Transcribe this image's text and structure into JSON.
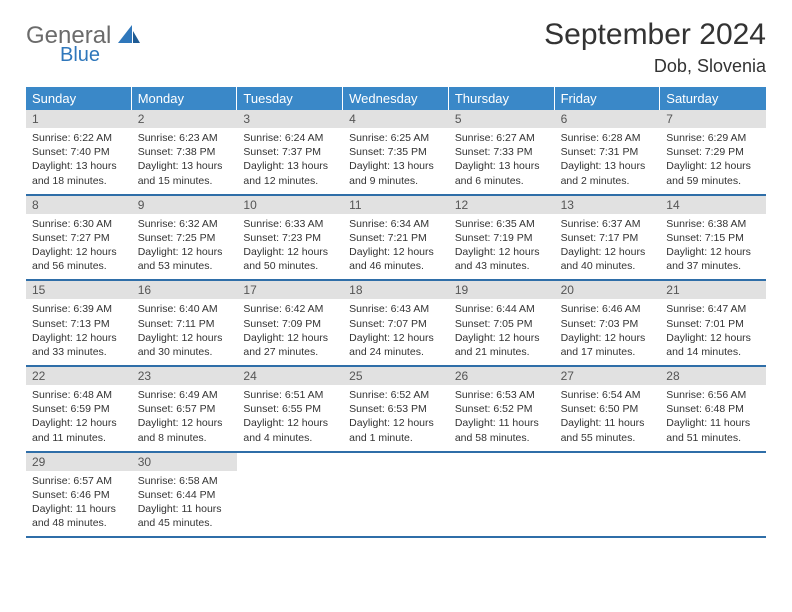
{
  "logo": {
    "general": "General",
    "blue": "Blue"
  },
  "title": "September 2024",
  "location": "Dob, Slovenia",
  "colors": {
    "header_bg": "#3a88c8",
    "header_text": "#ffffff",
    "daynum_bg": "#e1e1e1",
    "week_border": "#2f6ea8",
    "logo_gray": "#6b6b6b",
    "logo_blue": "#2f77bb"
  },
  "weekdays": [
    "Sunday",
    "Monday",
    "Tuesday",
    "Wednesday",
    "Thursday",
    "Friday",
    "Saturday"
  ],
  "weeks": [
    [
      {
        "n": "1",
        "sr": "Sunrise: 6:22 AM",
        "ss": "Sunset: 7:40 PM",
        "dl": "Daylight: 13 hours and 18 minutes."
      },
      {
        "n": "2",
        "sr": "Sunrise: 6:23 AM",
        "ss": "Sunset: 7:38 PM",
        "dl": "Daylight: 13 hours and 15 minutes."
      },
      {
        "n": "3",
        "sr": "Sunrise: 6:24 AM",
        "ss": "Sunset: 7:37 PM",
        "dl": "Daylight: 13 hours and 12 minutes."
      },
      {
        "n": "4",
        "sr": "Sunrise: 6:25 AM",
        "ss": "Sunset: 7:35 PM",
        "dl": "Daylight: 13 hours and 9 minutes."
      },
      {
        "n": "5",
        "sr": "Sunrise: 6:27 AM",
        "ss": "Sunset: 7:33 PM",
        "dl": "Daylight: 13 hours and 6 minutes."
      },
      {
        "n": "6",
        "sr": "Sunrise: 6:28 AM",
        "ss": "Sunset: 7:31 PM",
        "dl": "Daylight: 13 hours and 2 minutes."
      },
      {
        "n": "7",
        "sr": "Sunrise: 6:29 AM",
        "ss": "Sunset: 7:29 PM",
        "dl": "Daylight: 12 hours and 59 minutes."
      }
    ],
    [
      {
        "n": "8",
        "sr": "Sunrise: 6:30 AM",
        "ss": "Sunset: 7:27 PM",
        "dl": "Daylight: 12 hours and 56 minutes."
      },
      {
        "n": "9",
        "sr": "Sunrise: 6:32 AM",
        "ss": "Sunset: 7:25 PM",
        "dl": "Daylight: 12 hours and 53 minutes."
      },
      {
        "n": "10",
        "sr": "Sunrise: 6:33 AM",
        "ss": "Sunset: 7:23 PM",
        "dl": "Daylight: 12 hours and 50 minutes."
      },
      {
        "n": "11",
        "sr": "Sunrise: 6:34 AM",
        "ss": "Sunset: 7:21 PM",
        "dl": "Daylight: 12 hours and 46 minutes."
      },
      {
        "n": "12",
        "sr": "Sunrise: 6:35 AM",
        "ss": "Sunset: 7:19 PM",
        "dl": "Daylight: 12 hours and 43 minutes."
      },
      {
        "n": "13",
        "sr": "Sunrise: 6:37 AM",
        "ss": "Sunset: 7:17 PM",
        "dl": "Daylight: 12 hours and 40 minutes."
      },
      {
        "n": "14",
        "sr": "Sunrise: 6:38 AM",
        "ss": "Sunset: 7:15 PM",
        "dl": "Daylight: 12 hours and 37 minutes."
      }
    ],
    [
      {
        "n": "15",
        "sr": "Sunrise: 6:39 AM",
        "ss": "Sunset: 7:13 PM",
        "dl": "Daylight: 12 hours and 33 minutes."
      },
      {
        "n": "16",
        "sr": "Sunrise: 6:40 AM",
        "ss": "Sunset: 7:11 PM",
        "dl": "Daylight: 12 hours and 30 minutes."
      },
      {
        "n": "17",
        "sr": "Sunrise: 6:42 AM",
        "ss": "Sunset: 7:09 PM",
        "dl": "Daylight: 12 hours and 27 minutes."
      },
      {
        "n": "18",
        "sr": "Sunrise: 6:43 AM",
        "ss": "Sunset: 7:07 PM",
        "dl": "Daylight: 12 hours and 24 minutes."
      },
      {
        "n": "19",
        "sr": "Sunrise: 6:44 AM",
        "ss": "Sunset: 7:05 PM",
        "dl": "Daylight: 12 hours and 21 minutes."
      },
      {
        "n": "20",
        "sr": "Sunrise: 6:46 AM",
        "ss": "Sunset: 7:03 PM",
        "dl": "Daylight: 12 hours and 17 minutes."
      },
      {
        "n": "21",
        "sr": "Sunrise: 6:47 AM",
        "ss": "Sunset: 7:01 PM",
        "dl": "Daylight: 12 hours and 14 minutes."
      }
    ],
    [
      {
        "n": "22",
        "sr": "Sunrise: 6:48 AM",
        "ss": "Sunset: 6:59 PM",
        "dl": "Daylight: 12 hours and 11 minutes."
      },
      {
        "n": "23",
        "sr": "Sunrise: 6:49 AM",
        "ss": "Sunset: 6:57 PM",
        "dl": "Daylight: 12 hours and 8 minutes."
      },
      {
        "n": "24",
        "sr": "Sunrise: 6:51 AM",
        "ss": "Sunset: 6:55 PM",
        "dl": "Daylight: 12 hours and 4 minutes."
      },
      {
        "n": "25",
        "sr": "Sunrise: 6:52 AM",
        "ss": "Sunset: 6:53 PM",
        "dl": "Daylight: 12 hours and 1 minute."
      },
      {
        "n": "26",
        "sr": "Sunrise: 6:53 AM",
        "ss": "Sunset: 6:52 PM",
        "dl": "Daylight: 11 hours and 58 minutes."
      },
      {
        "n": "27",
        "sr": "Sunrise: 6:54 AM",
        "ss": "Sunset: 6:50 PM",
        "dl": "Daylight: 11 hours and 55 minutes."
      },
      {
        "n": "28",
        "sr": "Sunrise: 6:56 AM",
        "ss": "Sunset: 6:48 PM",
        "dl": "Daylight: 11 hours and 51 minutes."
      }
    ],
    [
      {
        "n": "29",
        "sr": "Sunrise: 6:57 AM",
        "ss": "Sunset: 6:46 PM",
        "dl": "Daylight: 11 hours and 48 minutes."
      },
      {
        "n": "30",
        "sr": "Sunrise: 6:58 AM",
        "ss": "Sunset: 6:44 PM",
        "dl": "Daylight: 11 hours and 45 minutes."
      },
      null,
      null,
      null,
      null,
      null
    ]
  ]
}
